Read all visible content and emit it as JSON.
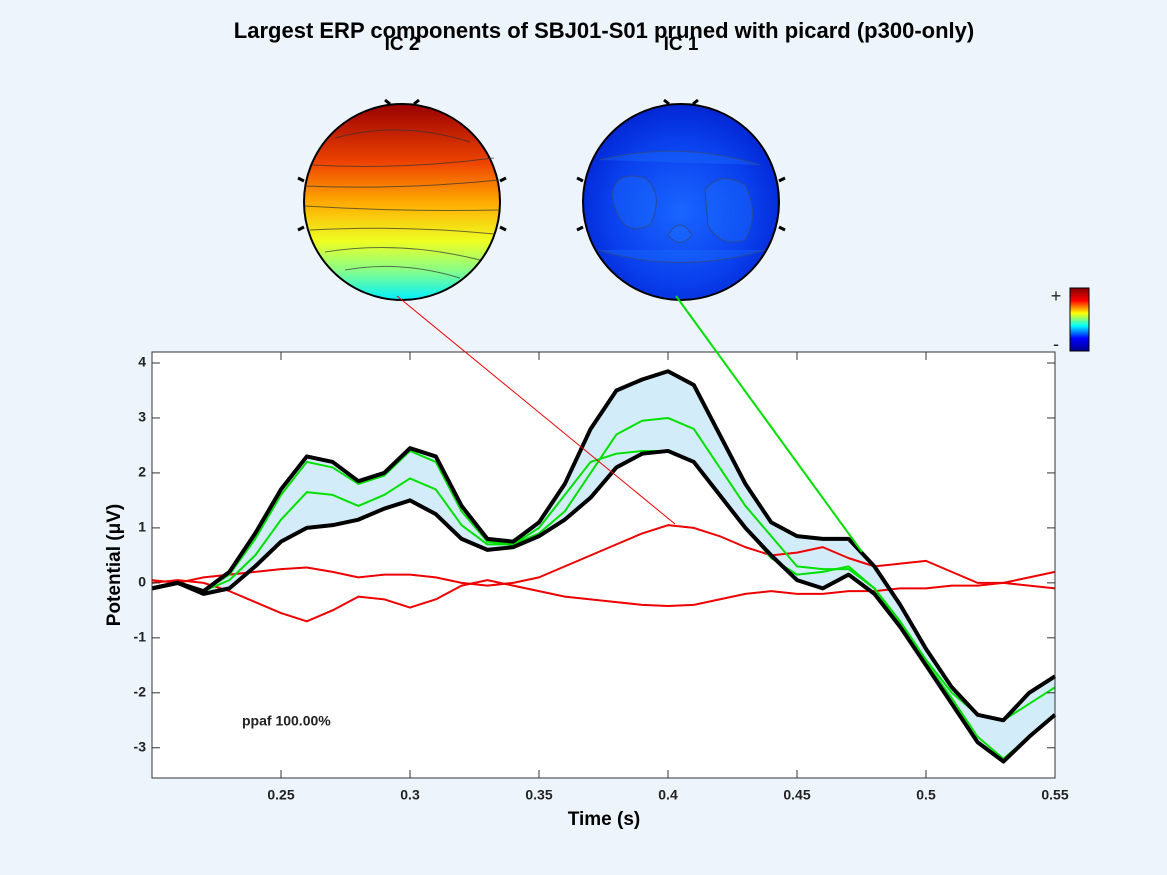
{
  "chart_data": {
    "type": "line",
    "title": "Largest ERP components of SBJ01-S01 pruned with picard (p300-only)",
    "xlabel": "Time (s)",
    "ylabel": "Potential (μV)",
    "annotation": "ppaf 100.00%",
    "topo_labels": [
      "IC 2",
      "IC 1"
    ],
    "colorbar_labels": [
      "+",
      "-"
    ],
    "xlim": [
      0.2,
      0.55
    ],
    "xticks": [
      0.25,
      0.3,
      0.35,
      0.4,
      0.45,
      0.5,
      0.55
    ],
    "ylim": [
      -3.55,
      4.2
    ],
    "yticks": [
      -3,
      -2,
      -1,
      0,
      1,
      2,
      3,
      4
    ],
    "envelope_fill": "#d3ecf9",
    "x": [
      0.2,
      0.21,
      0.22,
      0.23,
      0.24,
      0.25,
      0.26,
      0.27,
      0.28,
      0.29,
      0.3,
      0.31,
      0.32,
      0.33,
      0.34,
      0.35,
      0.36,
      0.37,
      0.38,
      0.39,
      0.4,
      0.41,
      0.42,
      0.43,
      0.44,
      0.45,
      0.46,
      0.47,
      0.48,
      0.49,
      0.5,
      0.51,
      0.52,
      0.53,
      0.54,
      0.55
    ],
    "series": [
      {
        "color": "#000000",
        "width": 4,
        "values": [
          -0.1,
          0.0,
          -0.15,
          0.2,
          0.9,
          1.7,
          2.3,
          2.2,
          1.85,
          2.0,
          2.45,
          2.3,
          1.4,
          0.8,
          0.75,
          1.1,
          1.8,
          2.8,
          3.5,
          3.7,
          3.85,
          3.6,
          2.7,
          1.8,
          1.1,
          0.85,
          0.8,
          0.8,
          0.3,
          -0.4,
          -1.2,
          -1.9,
          -2.4,
          -2.5,
          -2.0,
          -1.7
        ]
      },
      {
        "color": "#000000",
        "width": 4,
        "values": [
          -0.1,
          0.0,
          -0.2,
          -0.1,
          0.3,
          0.75,
          1.0,
          1.05,
          1.15,
          1.35,
          1.5,
          1.25,
          0.8,
          0.6,
          0.65,
          0.85,
          1.15,
          1.55,
          2.1,
          2.35,
          2.4,
          2.2,
          1.6,
          1.0,
          0.5,
          0.05,
          -0.1,
          0.15,
          -0.2,
          -0.8,
          -1.5,
          -2.2,
          -2.9,
          -3.25,
          -2.8,
          -2.4
        ]
      },
      {
        "color": "#00e000",
        "width": 2,
        "values": [
          -0.1,
          0.0,
          -0.15,
          0.15,
          0.8,
          1.6,
          2.2,
          2.1,
          1.8,
          1.95,
          2.4,
          2.2,
          1.3,
          0.75,
          0.7,
          1.0,
          1.6,
          2.2,
          2.35,
          2.4,
          2.4,
          2.2,
          1.6,
          1.0,
          0.45,
          0.15,
          0.2,
          0.3,
          -0.1,
          -0.7,
          -1.4,
          -2.0,
          -2.4,
          -2.5,
          -2.2,
          -1.9
        ]
      },
      {
        "color": "#00e000",
        "width": 2,
        "values": [
          -0.1,
          0.0,
          -0.15,
          0.05,
          0.5,
          1.15,
          1.65,
          1.6,
          1.4,
          1.6,
          1.9,
          1.7,
          1.05,
          0.7,
          0.7,
          0.9,
          1.3,
          2.0,
          2.7,
          2.95,
          3.0,
          2.8,
          2.1,
          1.4,
          0.85,
          0.3,
          0.25,
          0.25,
          -0.1,
          -0.75,
          -1.45,
          -2.1,
          -2.8,
          -3.2,
          -2.8,
          -2.4
        ]
      },
      {
        "color": "#ee0000",
        "width": 2,
        "values": [
          0.05,
          0.0,
          0.1,
          0.15,
          0.2,
          0.25,
          0.28,
          0.2,
          0.1,
          0.15,
          0.15,
          0.1,
          0.0,
          -0.05,
          0.0,
          0.1,
          0.3,
          0.5,
          0.7,
          0.9,
          1.05,
          1.0,
          0.85,
          0.65,
          0.5,
          0.55,
          0.65,
          0.45,
          0.3,
          0.35,
          0.4,
          0.2,
          0.0,
          0.0,
          0.1,
          0.2
        ]
      },
      {
        "color": "#ee0000",
        "width": 2,
        "values": [
          0.0,
          0.05,
          0.0,
          -0.15,
          -0.35,
          -0.55,
          -0.7,
          -0.5,
          -0.25,
          -0.3,
          -0.45,
          -0.3,
          -0.05,
          0.05,
          -0.05,
          -0.15,
          -0.25,
          -0.3,
          -0.35,
          -0.4,
          -0.42,
          -0.4,
          -0.3,
          -0.2,
          -0.15,
          -0.2,
          -0.2,
          -0.15,
          -0.15,
          -0.1,
          -0.1,
          -0.05,
          -0.05,
          0.0,
          -0.05,
          -0.1
        ]
      }
    ]
  }
}
